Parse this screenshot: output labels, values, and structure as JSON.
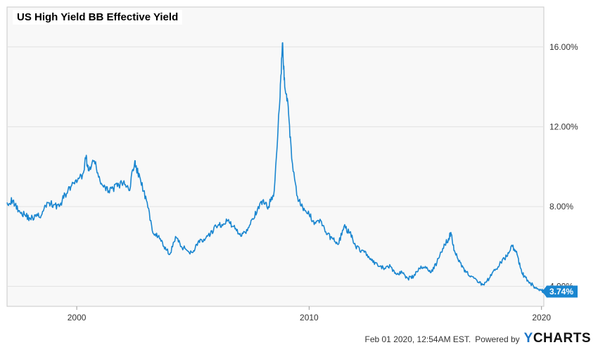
{
  "chart_data": {
    "type": "line",
    "title": "US High Yield BB Effective Yield",
    "x_ticks": [
      "2000",
      "2010",
      "2020"
    ],
    "y_ticks": [
      "4.00%",
      "8.00%",
      "12.00%",
      "16.00%"
    ],
    "xlim": [
      1997.0,
      2020.1
    ],
    "ylim": [
      3.0,
      18.0
    ],
    "last_value_label": "3.74%",
    "series": [
      {
        "color": "#1a86d0",
        "x": [
          1997.0,
          1997.25,
          1997.5,
          1997.75,
          1998.0,
          1998.25,
          1998.5,
          1998.75,
          1999.0,
          1999.25,
          1999.5,
          1999.75,
          2000.0,
          2000.25,
          2000.4,
          2000.5,
          2000.75,
          2001.0,
          2001.25,
          2001.5,
          2001.75,
          2002.0,
          2002.25,
          2002.5,
          2002.6,
          2002.75,
          2003.0,
          2003.25,
          2003.5,
          2003.75,
          2004.0,
          2004.25,
          2004.5,
          2004.75,
          2005.0,
          2005.25,
          2005.5,
          2005.75,
          2006.0,
          2006.25,
          2006.5,
          2006.75,
          2007.0,
          2007.25,
          2007.5,
          2007.75,
          2008.0,
          2008.25,
          2008.5,
          2008.75,
          2008.85,
          2008.95,
          2009.1,
          2009.25,
          2009.5,
          2009.75,
          2010.0,
          2010.25,
          2010.5,
          2010.75,
          2011.0,
          2011.25,
          2011.5,
          2011.75,
          2012.0,
          2012.25,
          2012.5,
          2012.75,
          2013.0,
          2013.25,
          2013.5,
          2013.75,
          2014.0,
          2014.25,
          2014.5,
          2014.75,
          2015.0,
          2015.25,
          2015.5,
          2015.75,
          2016.0,
          2016.1,
          2016.25,
          2016.5,
          2016.75,
          2017.0,
          2017.25,
          2017.5,
          2017.75,
          2018.0,
          2018.25,
          2018.5,
          2018.75,
          2018.95,
          2019.1,
          2019.25,
          2019.5,
          2019.75,
          2020.0,
          2020.1
        ],
        "y": [
          8.2,
          8.3,
          7.8,
          7.6,
          7.4,
          7.5,
          7.6,
          8.2,
          8.1,
          8.0,
          8.6,
          9.0,
          9.2,
          9.6,
          10.5,
          9.8,
          10.3,
          9.3,
          8.8,
          8.9,
          9.0,
          9.2,
          8.8,
          10.3,
          9.8,
          9.3,
          8.3,
          6.8,
          6.5,
          6.0,
          5.6,
          6.5,
          6.0,
          5.8,
          5.7,
          6.3,
          6.3,
          6.6,
          7.0,
          7.1,
          7.3,
          7.0,
          6.6,
          6.7,
          7.3,
          7.7,
          8.3,
          8.0,
          8.8,
          13.5,
          16.2,
          14.0,
          13.0,
          10.4,
          8.5,
          7.8,
          7.6,
          7.2,
          7.3,
          6.6,
          6.4,
          6.1,
          7.0,
          6.7,
          6.0,
          5.8,
          5.6,
          5.2,
          5.0,
          4.9,
          5.0,
          4.6,
          4.7,
          4.4,
          4.5,
          4.9,
          5.0,
          4.7,
          5.2,
          5.9,
          6.4,
          6.7,
          5.8,
          5.2,
          4.7,
          4.5,
          4.2,
          4.1,
          4.4,
          4.8,
          5.2,
          5.5,
          6.0,
          5.6,
          4.9,
          4.5,
          4.2,
          3.9,
          3.8,
          3.74
        ]
      }
    ]
  },
  "footer": {
    "timestamp": "Feb 01 2020, 12:54AM EST.",
    "powered_by": "Powered by",
    "brand_y": "Y",
    "brand_rest": "CHARTS"
  }
}
